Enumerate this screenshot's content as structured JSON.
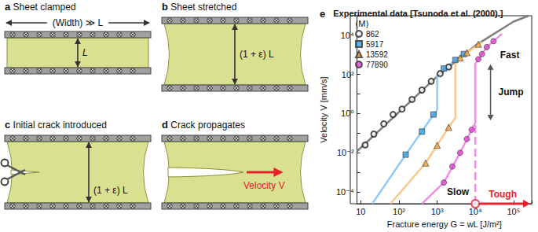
{
  "diagram": {
    "panels": [
      {
        "letter": "a",
        "title": "Sheet clamped",
        "labels": {
          "width": "(Width) ≫ L",
          "gap": "L"
        }
      },
      {
        "letter": "b",
        "title": "Sheet stretched",
        "labels": {
          "gap": "(1 + ε) L"
        }
      },
      {
        "letter": "c",
        "title": "Initial crack introduced",
        "labels": {
          "gap": "(1 + ε) L"
        }
      },
      {
        "letter": "d",
        "title": "Crack propagates",
        "labels": {
          "velocity": "Velocity V"
        }
      }
    ]
  },
  "chart_data": {
    "type": "scatter",
    "panel": "e",
    "title": "Experimental data [Tsunoda et al. (2000).]",
    "x_label": "Fracture energy G = wL [J/m²]",
    "y_label": "Velocity V [mm/s]",
    "log": true,
    "grid": false,
    "legend": "upper left",
    "legend_title": "⟨M⟩",
    "xlim": [
      8,
      300000
    ],
    "ylim": [
      2.5e-05,
      100000
    ],
    "xticks": [
      10,
      {
        "value": 100,
        "label": "10²"
      },
      {
        "value": 1000,
        "label": "10³"
      },
      {
        "value": 10000,
        "label": "10⁴"
      },
      {
        "value": 100000,
        "label": "10⁵"
      }
    ],
    "yticks": [
      {
        "value": 0.0001,
        "label": "10⁻⁴"
      },
      {
        "value": 0.01,
        "label": "10⁻²"
      },
      {
        "value": 1,
        "label": "10⁰"
      },
      {
        "value": 100,
        "label": "10²"
      },
      {
        "value": 10000,
        "label": "10⁴"
      }
    ],
    "series": [
      {
        "name": "862",
        "color": "#222222",
        "marker": "open_circle",
        "x": [
          13,
          22,
          40,
          70,
          120,
          220,
          400,
          700,
          1200,
          2000
        ],
        "values": [
          0.025,
          0.09,
          0.3,
          0.9,
          1.7,
          5.3,
          16,
          45,
          110,
          240
        ],
        "fit": [
          {
            "x": [
              8,
              100,
              1000,
              10000,
              100000,
              250000
            ],
            "values": [
              0.012,
              1.2,
              80,
              3000,
              50000,
              100000
            ],
            "color": "#7f7f7f",
            "line_style": "solid"
          }
        ]
      },
      {
        "name": "5917",
        "color": "#3b9be0",
        "marker": "square",
        "x": [
          150,
          400,
          800,
          1500,
          3000,
          5000
        ],
        "values": [
          0.008,
          0.12,
          0.9,
          200,
          550,
          1100
        ],
        "fit": [
          {
            "x": [
              20,
              150,
              700,
              1000,
              1000,
              2000,
              5000
            ],
            "values": [
              2.5e-05,
              0.008,
              0.6,
              1.5,
              100,
              300,
              1100
            ],
            "color": "#8fcbf2",
            "line_style": "solid"
          }
        ]
      },
      {
        "name": "13592",
        "color": "#f2a33a",
        "marker": "triangle",
        "x": [
          500,
          1000,
          2000,
          4000,
          6000,
          12000
        ],
        "values": [
          0.003,
          0.024,
          0.2,
          700,
          1300,
          3500
        ],
        "fit": [
          {
            "x": [
              60,
              500,
              2000,
              3000,
              3000,
              6000,
              15000
            ],
            "values": [
              2.5e-05,
              0.003,
              0.2,
              0.6,
              400,
              1300,
              4500
            ],
            "color": "#f7c98c",
            "line_style": "solid"
          }
        ]
      },
      {
        "name": "77890",
        "color": "#dd44cc",
        "marker": "circle",
        "x": [
          1500,
          2500,
          4000,
          6000,
          8000,
          12000,
          15000,
          20000,
          30000
        ],
        "values": [
          0.0003,
          0.002,
          0.01,
          0.05,
          0.15,
          600,
          1100,
          2500,
          5000
        ],
        "fit": [
          {
            "x": [
              400,
              1500,
              4000,
              10000,
              10000,
              20000,
              50000
            ],
            "values": [
              2.5e-05,
              0.0003,
              0.01,
              0.35,
              350,
              2500,
              12000
            ],
            "color": "#f08ee3",
            "line_style": "solid"
          },
          {
            "x": [
              10000,
              10000
            ],
            "values": [
              2.5e-05,
              0.35
            ],
            "color": "#f08ee3",
            "line_style": "dashed"
          }
        ]
      }
    ],
    "threshold": {
      "x": 10000,
      "label": "Tough",
      "color": "#e8202a"
    },
    "annotations": [
      "Fast",
      "Jump",
      "Slow"
    ]
  }
}
